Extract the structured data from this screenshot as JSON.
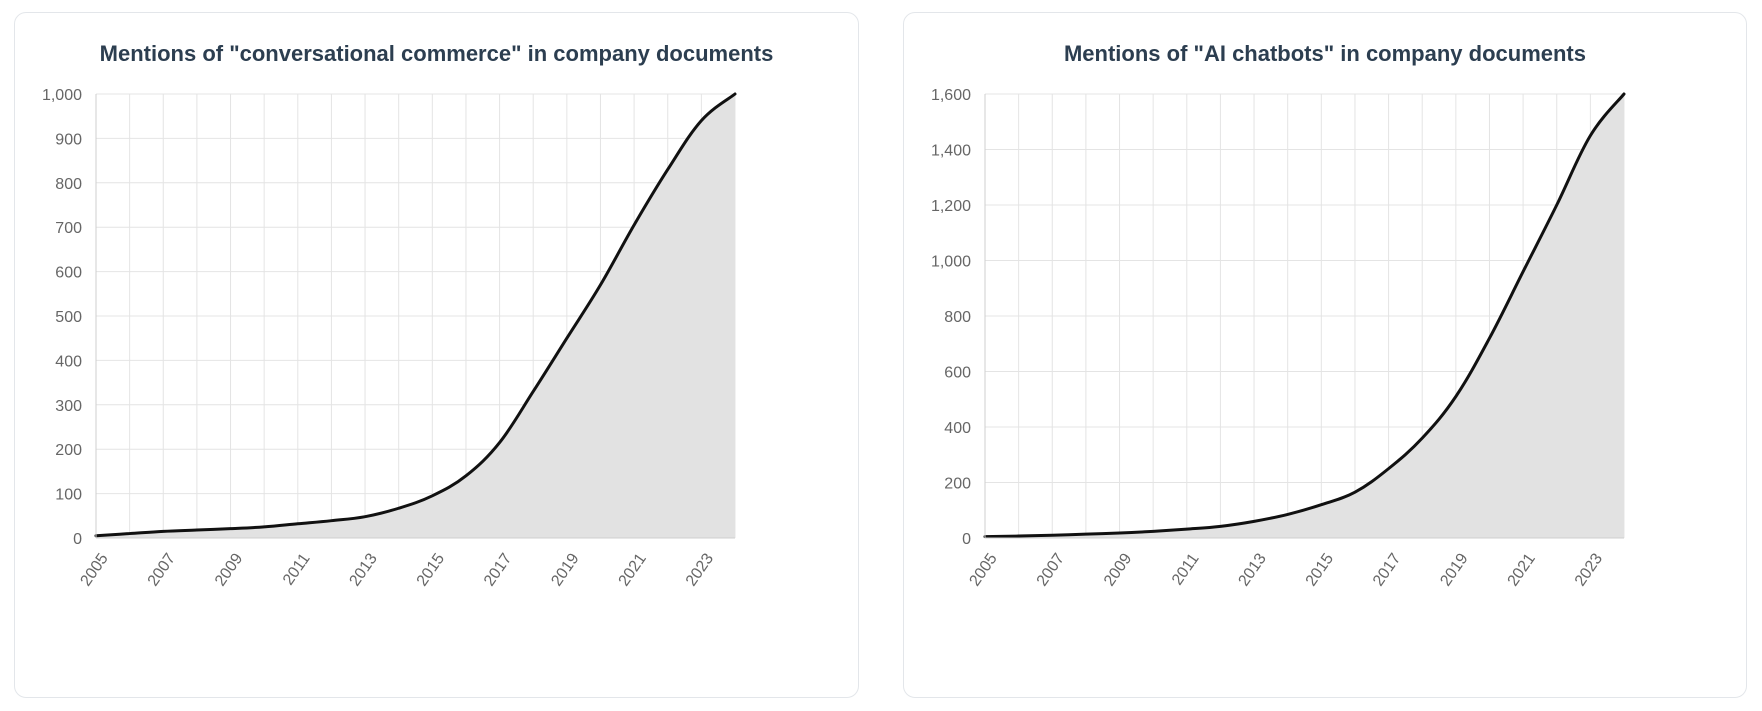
{
  "colors": {
    "line": "#111111",
    "fill": "#e2e2e2",
    "grid": "#e4e4e4",
    "tick_text": "#666666",
    "title": "#2c3e50"
  },
  "chart_data": [
    {
      "type": "area",
      "title": "Mentions of \"conversational commerce\" in company documents",
      "xlabel": "",
      "ylabel": "",
      "grid": true,
      "xlim": [
        2005,
        2024
      ],
      "ylim": [
        0,
        1000
      ],
      "x_ticks": [
        "2005",
        "2007",
        "2009",
        "2011",
        "2013",
        "2015",
        "2017",
        "2019",
        "2021",
        "2023"
      ],
      "y_ticks": [
        "0",
        "100",
        "200",
        "300",
        "400",
        "500",
        "600",
        "700",
        "800",
        "900",
        "1,000"
      ],
      "x": [
        2005,
        2006,
        2007,
        2008,
        2009,
        2010,
        2011,
        2012,
        2013,
        2014,
        2015,
        2016,
        2017,
        2018,
        2019,
        2020,
        2021,
        2022,
        2023,
        2024
      ],
      "series": [
        {
          "values": [
            5,
            10,
            15,
            18,
            21,
            25,
            32,
            39,
            48,
            67,
            95,
            140,
            215,
            330,
            450,
            570,
            705,
            830,
            940,
            1000
          ]
        }
      ]
    },
    {
      "type": "area",
      "title": "Mentions of \"AI chatbots\" in company documents",
      "xlabel": "",
      "ylabel": "",
      "grid": true,
      "xlim": [
        2005,
        2024
      ],
      "ylim": [
        0,
        1600
      ],
      "x_ticks": [
        "2005",
        "2007",
        "2009",
        "2011",
        "2013",
        "2015",
        "2017",
        "2019",
        "2021",
        "2023"
      ],
      "y_ticks": [
        "0",
        "200",
        "400",
        "600",
        "800",
        "1,000",
        "1,200",
        "1,400",
        "1,600"
      ],
      "x": [
        2005,
        2006,
        2007,
        2008,
        2009,
        2010,
        2011,
        2012,
        2013,
        2014,
        2015,
        2016,
        2017,
        2018,
        2019,
        2020,
        2021,
        2022,
        2023,
        2024
      ],
      "series": [
        {
          "values": [
            5,
            7,
            10,
            14,
            18,
            24,
            32,
            42,
            60,
            85,
            120,
            165,
            250,
            360,
            510,
            720,
            960,
            1200,
            1450,
            1600
          ]
        }
      ]
    }
  ]
}
